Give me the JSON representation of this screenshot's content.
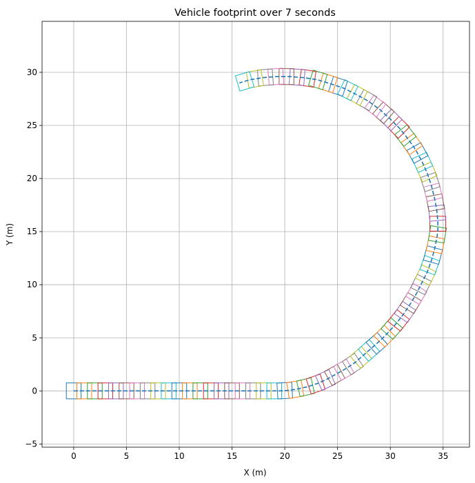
{
  "chart_data": {
    "type": "line",
    "title": "Vehicle footprint over 7 seconds",
    "xlabel": "X (m)",
    "ylabel": "Y (m)",
    "xlim": [
      -3,
      37.5
    ],
    "ylim": [
      -5.3,
      34.8
    ],
    "xticks": [
      0,
      5,
      10,
      15,
      20,
      25,
      30,
      35
    ],
    "yticks": [
      -5,
      0,
      5,
      10,
      15,
      20,
      25,
      30
    ],
    "xtick_labels": [
      "0",
      "5",
      "10",
      "15",
      "20",
      "25",
      "30",
      "35"
    ],
    "ytick_labels": [
      "−5",
      "0",
      "5",
      "10",
      "15",
      "20",
      "25",
      "30"
    ],
    "grid": true,
    "duration_s": 7,
    "footprint_length_m": 1.4,
    "footprint_width_m": 1.5,
    "path_color": "#1f77b4",
    "footprint_colors": [
      "#1f77b4",
      "#ff7f0e",
      "#2ca02c",
      "#d62728",
      "#9467bd",
      "#8c564b",
      "#e377c2",
      "#7f7f7f",
      "#bcbd22",
      "#17becf"
    ],
    "series": [
      {
        "style": "dashed",
        "points": [
          [
            0.0,
            0.0
          ],
          [
            19.5,
            0.0
          ],
          [
            20.4,
            0.05
          ],
          [
            21.3,
            0.2
          ],
          [
            22.2,
            0.4
          ],
          [
            23.1,
            0.7
          ],
          [
            24.0,
            1.1
          ],
          [
            24.9,
            1.6
          ],
          [
            25.8,
            2.1
          ],
          [
            26.7,
            2.7
          ],
          [
            27.5,
            3.4
          ],
          [
            28.3,
            4.1
          ],
          [
            29.1,
            4.8
          ],
          [
            29.9,
            5.6
          ],
          [
            30.6,
            6.4
          ],
          [
            31.3,
            7.3
          ],
          [
            31.9,
            8.2
          ],
          [
            32.5,
            9.2
          ],
          [
            33.0,
            10.2
          ],
          [
            33.5,
            11.2
          ],
          [
            33.9,
            12.3
          ],
          [
            34.2,
            13.4
          ],
          [
            34.4,
            14.4
          ],
          [
            34.5,
            15.0
          ],
          [
            34.5,
            16.0
          ],
          [
            34.4,
            17.0
          ],
          [
            34.2,
            18.1
          ],
          [
            33.9,
            19.3
          ],
          [
            33.5,
            20.5
          ],
          [
            33.0,
            21.6
          ],
          [
            32.4,
            22.7
          ],
          [
            31.7,
            23.7
          ],
          [
            30.9,
            24.7
          ],
          [
            30.0,
            25.6
          ],
          [
            29.0,
            26.5
          ],
          [
            27.9,
            27.3
          ],
          [
            26.8,
            27.9
          ],
          [
            25.6,
            28.5
          ],
          [
            24.4,
            28.9
          ],
          [
            23.1,
            29.3
          ],
          [
            21.8,
            29.5
          ],
          [
            20.5,
            29.6
          ],
          [
            19.2,
            29.6
          ],
          [
            17.9,
            29.5
          ],
          [
            16.7,
            29.3
          ],
          [
            15.7,
            29.0
          ]
        ]
      }
    ]
  }
}
